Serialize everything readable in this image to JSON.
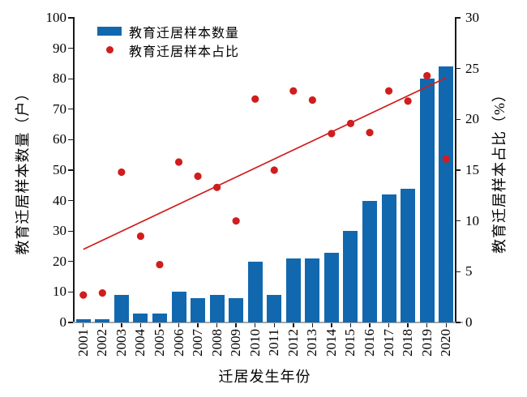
{
  "figure": {
    "legend": [
      {
        "label": "教育迁居样本数量",
        "marker": "bar-swatch",
        "color": "#1268ae"
      },
      {
        "label": "教育迁居样本占比",
        "marker": "dot",
        "color": "#d01d1d"
      }
    ],
    "left_axis_label": "教育迁居样本数量（户）",
    "right_axis_label": "教育迁居样本占比（%）",
    "x_axis_label": "迁居发生年份"
  },
  "chart_data": {
    "type": "bar",
    "title": "",
    "xlabel": "迁居发生年份",
    "ylabel_left": "教育迁居样本数量（户）",
    "ylabel_right": "教育迁居样本占比（%）",
    "categories": [
      "2001",
      "2002",
      "2003",
      "2004",
      "2005",
      "2006",
      "2007",
      "2008",
      "2009",
      "2010",
      "2011",
      "2012",
      "2013",
      "2014",
      "2015",
      "2016",
      "2017",
      "2018",
      "2019",
      "2020"
    ],
    "series": [
      {
        "name": "教育迁居样本数量",
        "type": "bar",
        "axis": "left",
        "unit": "户",
        "color": "#1268ae",
        "values": [
          1,
          1,
          9,
          3,
          3,
          10,
          8,
          9,
          8,
          20,
          9,
          21,
          21,
          23,
          30,
          40,
          42,
          44,
          80,
          84
        ]
      },
      {
        "name": "教育迁居样本占比",
        "type": "scatter",
        "axis": "right",
        "unit": "%",
        "color": "#d01d1d",
        "values": [
          2.7,
          2.9,
          14.8,
          8.5,
          5.7,
          15.8,
          14.4,
          13.3,
          10.0,
          22.0,
          15.0,
          22.8,
          21.9,
          18.6,
          19.6,
          18.7,
          22.8,
          21.8,
          24.3,
          16.1
        ]
      }
    ],
    "trendline": {
      "axis": "right",
      "start_value": 7.2,
      "end_value": 24.1,
      "color": "#d01d1d"
    },
    "left_axis": {
      "min": 0,
      "max": 100,
      "step": 10
    },
    "right_axis": {
      "min": 0,
      "max": 30,
      "step": 5
    },
    "grid": false,
    "legend_position": "top-left-inside"
  }
}
